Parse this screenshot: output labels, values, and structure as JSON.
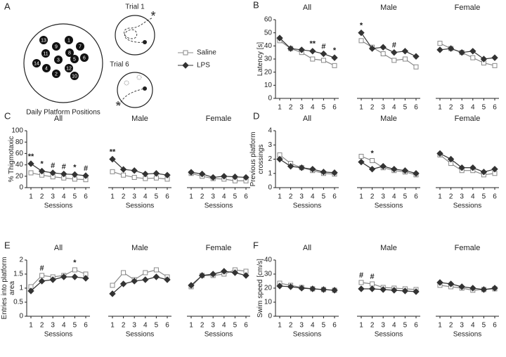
{
  "diagram": {
    "panel": "A",
    "title": "Daily Platform Positions",
    "platforms": [
      13,
      1,
      9,
      7,
      11,
      8,
      3,
      5,
      6,
      14,
      4,
      12,
      10,
      2
    ],
    "trials": [
      {
        "label": "Trial 1",
        "marker": "*"
      },
      {
        "label": "Trial 6",
        "marker": "*"
      }
    ]
  },
  "legend": [
    {
      "name": "Saline",
      "marker": "square",
      "color": "#888888"
    },
    {
      "name": "LPS",
      "marker": "diamond",
      "color": "#333333"
    }
  ],
  "chart_data": [
    {
      "type": "line",
      "panel": "B",
      "ylabel": [
        "Latency [s]"
      ],
      "title": "All",
      "categories": [
        1,
        2,
        3,
        4,
        5,
        6
      ],
      "series": [
        {
          "values": [
            44,
            38,
            35,
            30,
            29,
            25
          ]
        },
        {
          "values": [
            46,
            38,
            37,
            36,
            34,
            31
          ]
        }
      ],
      "ylim": [
        0,
        60
      ],
      "yticks": [
        0,
        10,
        20,
        30,
        40,
        50,
        60
      ],
      "annotations": [
        {
          "session": 4,
          "text": "**"
        },
        {
          "session": 5,
          "text": "#"
        },
        {
          "session": 6,
          "text": "*"
        }
      ]
    },
    {
      "type": "line",
      "title": "Male",
      "categories": [
        1,
        2,
        3,
        4,
        5,
        6
      ],
      "series": [
        {
          "values": [
            44,
            39,
            34,
            29,
            30,
            24
          ]
        },
        {
          "values": [
            50,
            38,
            39,
            35,
            36,
            32
          ]
        }
      ],
      "ylim": [
        0,
        60
      ],
      "annotations": [
        {
          "session": 1,
          "text": "*"
        },
        {
          "session": 4,
          "text": "#"
        }
      ]
    },
    {
      "type": "line",
      "title": "Female",
      "categories": [
        1,
        2,
        3,
        4,
        5,
        6
      ],
      "series": [
        {
          "values": [
            42,
            38,
            35,
            31,
            27,
            25
          ]
        },
        {
          "values": [
            37,
            38,
            35,
            36,
            30,
            31
          ]
        }
      ],
      "ylim": [
        0,
        60
      ]
    },
    {
      "type": "line",
      "panel": "C",
      "ylabel": [
        "% Thigmotaxic"
      ],
      "title": "All",
      "xlabel": "Sessions",
      "categories": [
        1,
        2,
        3,
        4,
        5,
        6
      ],
      "series": [
        {
          "values": [
            26,
            22,
            19,
            17,
            15,
            14
          ]
        },
        {
          "values": [
            42,
            29,
            26,
            24,
            23,
            21
          ]
        }
      ],
      "ylim": [
        0,
        100
      ],
      "yticks": [
        0,
        20,
        40,
        60,
        80,
        100
      ],
      "annotations": [
        {
          "session": 1,
          "text": "**"
        },
        {
          "session": 2,
          "text": "*"
        },
        {
          "session": 3,
          "text": "#"
        },
        {
          "session": 4,
          "text": "#"
        },
        {
          "session": 5,
          "text": "*"
        },
        {
          "session": 6,
          "text": "#"
        }
      ]
    },
    {
      "type": "line",
      "title": "Male",
      "xlabel": "Sessions",
      "categories": [
        1,
        2,
        3,
        4,
        5,
        6
      ],
      "series": [
        {
          "values": [
            28,
            22,
            18,
            16,
            17,
            15
          ]
        },
        {
          "values": [
            50,
            32,
            30,
            24,
            25,
            22
          ]
        }
      ],
      "ylim": [
        0,
        100
      ],
      "annotations": [
        {
          "session": 1,
          "text": "**"
        }
      ]
    },
    {
      "type": "line",
      "title": "Female",
      "xlabel": "Sessions",
      "categories": [
        1,
        2,
        3,
        4,
        5,
        6
      ],
      "series": [
        {
          "values": [
            25,
            20,
            16,
            15,
            12,
            12
          ]
        },
        {
          "values": [
            27,
            24,
            18,
            20,
            19,
            18
          ]
        }
      ],
      "ylim": [
        0,
        100
      ]
    },
    {
      "type": "line",
      "panel": "D",
      "ylabel": [
        "Previous platform",
        "crossings"
      ],
      "title": "All",
      "xlabel": "Sessions",
      "categories": [
        1,
        2,
        3,
        4,
        5,
        6
      ],
      "series": [
        {
          "values": [
            2.3,
            1.7,
            1.4,
            1.2,
            1.0,
            0.95
          ]
        },
        {
          "values": [
            2.0,
            1.5,
            1.4,
            1.3,
            1.1,
            1.05
          ]
        }
      ],
      "ylim": [
        0,
        4
      ],
      "yticks": [
        0,
        1,
        2,
        3,
        4
      ]
    },
    {
      "type": "line",
      "title": "Male",
      "xlabel": "Sessions",
      "categories": [
        1,
        2,
        3,
        4,
        5,
        6
      ],
      "series": [
        {
          "values": [
            2.2,
            1.9,
            1.4,
            1.2,
            1.1,
            0.9
          ]
        },
        {
          "values": [
            1.8,
            1.3,
            1.5,
            1.3,
            1.2,
            1.0
          ]
        }
      ],
      "ylim": [
        0,
        4
      ],
      "annotations": [
        {
          "session": 2,
          "text": "*"
        }
      ]
    },
    {
      "type": "line",
      "title": "Female",
      "xlabel": "Sessions",
      "categories": [
        1,
        2,
        3,
        4,
        5,
        6
      ],
      "series": [
        {
          "values": [
            2.3,
            1.7,
            1.2,
            1.2,
            0.9,
            1.0
          ]
        },
        {
          "values": [
            2.4,
            2.0,
            1.4,
            1.4,
            1.1,
            1.3
          ]
        }
      ],
      "ylim": [
        0,
        4
      ]
    },
    {
      "type": "line",
      "panel": "E",
      "ylabel": [
        "Entries into platform",
        "area"
      ],
      "title": "All",
      "xlabel": "Sessions",
      "categories": [
        1,
        2,
        3,
        4,
        5,
        6
      ],
      "series": [
        {
          "values": [
            1.05,
            1.45,
            1.4,
            1.45,
            1.65,
            1.5
          ]
        },
        {
          "values": [
            0.9,
            1.25,
            1.3,
            1.4,
            1.4,
            1.35
          ]
        }
      ],
      "ylim": [
        0,
        2
      ],
      "yticks": [
        0,
        0.5,
        1,
        1.5,
        2
      ],
      "annotations": [
        {
          "session": 2,
          "text": "#"
        },
        {
          "session": 5,
          "text": "*"
        }
      ]
    },
    {
      "type": "line",
      "title": "Male",
      "xlabel": "Sessions",
      "categories": [
        1,
        2,
        3,
        4,
        5,
        6
      ],
      "series": [
        {
          "values": [
            1.1,
            1.55,
            1.3,
            1.55,
            1.65,
            1.4
          ]
        },
        {
          "values": [
            0.8,
            1.15,
            1.25,
            1.3,
            1.4,
            1.3
          ]
        }
      ],
      "ylim": [
        0,
        2
      ]
    },
    {
      "type": "line",
      "title": "Female",
      "xlabel": "Sessions",
      "categories": [
        1,
        2,
        3,
        4,
        5,
        6
      ],
      "series": [
        {
          "values": [
            1.05,
            1.45,
            1.45,
            1.5,
            1.65,
            1.6
          ]
        },
        {
          "values": [
            1.1,
            1.45,
            1.5,
            1.6,
            1.55,
            1.45
          ]
        }
      ],
      "ylim": [
        0,
        2
      ]
    },
    {
      "type": "line",
      "panel": "F",
      "ylabel": [
        "Swim speed [cm/s]"
      ],
      "title": "All",
      "xlabel": "Sessions",
      "categories": [
        1,
        2,
        3,
        4,
        5,
        6
      ],
      "series": [
        {
          "values": [
            23.5,
            22,
            20.5,
            19.5,
            19,
            18.5
          ]
        },
        {
          "values": [
            21.5,
            21,
            20,
            19.5,
            19,
            18.5
          ]
        }
      ],
      "ylim": [
        0,
        40
      ],
      "yticks": [
        0,
        10,
        20,
        30,
        40
      ]
    },
    {
      "type": "line",
      "title": "Male",
      "xlabel": "Sessions",
      "categories": [
        1,
        2,
        3,
        4,
        5,
        6
      ],
      "series": [
        {
          "values": [
            24,
            23,
            20.5,
            20,
            19.5,
            19
          ]
        },
        {
          "values": [
            19.5,
            19.5,
            19,
            18.5,
            18,
            17.5
          ]
        }
      ],
      "ylim": [
        0,
        40
      ],
      "annotations": [
        {
          "session": 1,
          "text": "#"
        },
        {
          "session": 2,
          "text": "#"
        }
      ]
    },
    {
      "type": "line",
      "title": "Female",
      "xlabel": "Sessions",
      "categories": [
        1,
        2,
        3,
        4,
        5,
        6
      ],
      "series": [
        {
          "values": [
            22,
            21,
            20,
            18.5,
            19,
            19.5
          ]
        },
        {
          "values": [
            24,
            23,
            21,
            20,
            19,
            20
          ]
        }
      ],
      "ylim": [
        0,
        40
      ]
    }
  ]
}
